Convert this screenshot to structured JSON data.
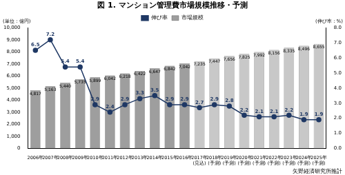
{
  "chart_data": {
    "type": "bar",
    "title": "図 1. マンション管理費市場規模推移・予測",
    "y_label": "(単位：億円)",
    "y2_label": "(伸び率：%)",
    "source": "矢野経済研究所推計",
    "categories": [
      "2006年",
      "2007年",
      "2008年",
      "2009年",
      "2010年",
      "2011年",
      "2012年",
      "2013年",
      "2014年",
      "2015年",
      "2016年",
      "2017年\n(見込)",
      "2018年\n(予測)",
      "2019年\n(予測)",
      "2020年\n(予測)",
      "2021年\n(予測)",
      "2022年\n(予測)",
      "2023年\n(予測)",
      "2024年\n(予測)",
      "2025年\n(予測)"
    ],
    "series": [
      {
        "name": "市場規模",
        "type": "bar",
        "colors": [
          "#9e9e9e",
          "#9e9e9e",
          "#9e9e9e",
          "#9e9e9e",
          "#9e9e9e",
          "#9e9e9e",
          "#9e9e9e",
          "#9e9e9e",
          "#9e9e9e",
          "#9e9e9e",
          "#9e9e9e",
          "#c8c8c8",
          "#c8c8c8",
          "#c8c8c8",
          "#c8c8c8",
          "#c8c8c8",
          "#c8c8c8",
          "#c8c8c8",
          "#c8c8c8",
          "#c8c8c8"
        ],
        "values": [
          4817,
          5163,
          5440,
          5735,
          5899,
          6042,
          6218,
          6422,
          6647,
          6842,
          7042,
          7235,
          7447,
          7656,
          7825,
          7992,
          8156,
          8335,
          8496,
          8655
        ],
        "value_labels": [
          "4,817",
          "5,163",
          "5,440",
          "5,735",
          "5,899",
          "6,042",
          "6,218",
          "6,422",
          "6,647",
          "6,842",
          "7,042",
          "7,235",
          "7,447",
          "7,656",
          "7,825",
          "7,992",
          "8,156",
          "8,335",
          "8,496",
          "8,655"
        ]
      },
      {
        "name": "伸び率",
        "type": "line",
        "axis": "y2",
        "color": "#1f3864",
        "marker": "circle",
        "values": [
          6.5,
          7.2,
          5.4,
          5.4,
          2.9,
          2.4,
          2.9,
          3.3,
          3.5,
          2.9,
          2.9,
          2.7,
          2.9,
          2.8,
          2.2,
          2.1,
          2.1,
          2.2,
          1.9,
          1.9
        ]
      }
    ],
    "ylim": [
      0,
      10000
    ],
    "yticks": [
      {
        "value": 0,
        "label": "0"
      },
      {
        "value": 1000,
        "label": "1,000"
      },
      {
        "value": 2000,
        "label": "2,000"
      },
      {
        "value": 3000,
        "label": "3,000"
      },
      {
        "value": 4000,
        "label": "4,000"
      },
      {
        "value": 5000,
        "label": "5,000"
      },
      {
        "value": 6000,
        "label": "6,000"
      },
      {
        "value": 7000,
        "label": "7,000"
      },
      {
        "value": 8000,
        "label": "8,000"
      },
      {
        "value": 9000,
        "label": "9,000"
      },
      {
        "value": 10000,
        "label": "10,000"
      }
    ],
    "y2lim": [
      0,
      8
    ],
    "y2ticks": [
      {
        "value": 0,
        "label": "0.0"
      },
      {
        "value": 1,
        "label": "1.0"
      },
      {
        "value": 2,
        "label": "2.0"
      },
      {
        "value": 3,
        "label": "3.0"
      },
      {
        "value": 4,
        "label": "4.0"
      },
      {
        "value": 5,
        "label": "5.0"
      },
      {
        "value": 6,
        "label": "6.0"
      },
      {
        "value": 7,
        "label": "7.0"
      },
      {
        "value": 8,
        "label": "8.0"
      }
    ],
    "legend": "top",
    "data_labels": true,
    "grid": false
  }
}
